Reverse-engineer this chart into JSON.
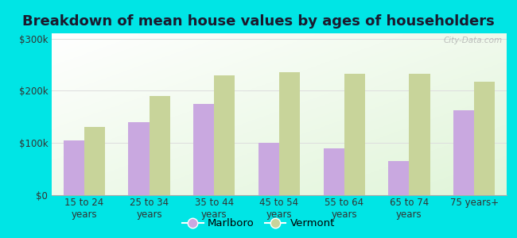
{
  "title": "Breakdown of mean house values by ages of householders",
  "categories": [
    "15 to 24\nyears",
    "25 to 34\nyears",
    "35 to 44\nyears",
    "45 to 54\nyears",
    "55 to 64\nyears",
    "65 to 74\nyears",
    "75 years+"
  ],
  "marlboro": [
    105000,
    140000,
    175000,
    100000,
    90000,
    65000,
    163000
  ],
  "vermont": [
    130000,
    190000,
    230000,
    235000,
    233000,
    232000,
    218000
  ],
  "marlboro_color": "#c9a8e0",
  "vermont_color": "#c8d49a",
  "outer_background": "#00e5e5",
  "yticks": [
    0,
    100000,
    200000,
    300000
  ],
  "ytick_labels": [
    "$0",
    "$100k",
    "$200k",
    "$300k"
  ],
  "ylim": [
    0,
    310000
  ],
  "legend_labels": [
    "Marlboro",
    "Vermont"
  ],
  "watermark": "City-Data.com",
  "title_fontsize": 13,
  "tick_fontsize": 8.5,
  "legend_fontsize": 9.5
}
